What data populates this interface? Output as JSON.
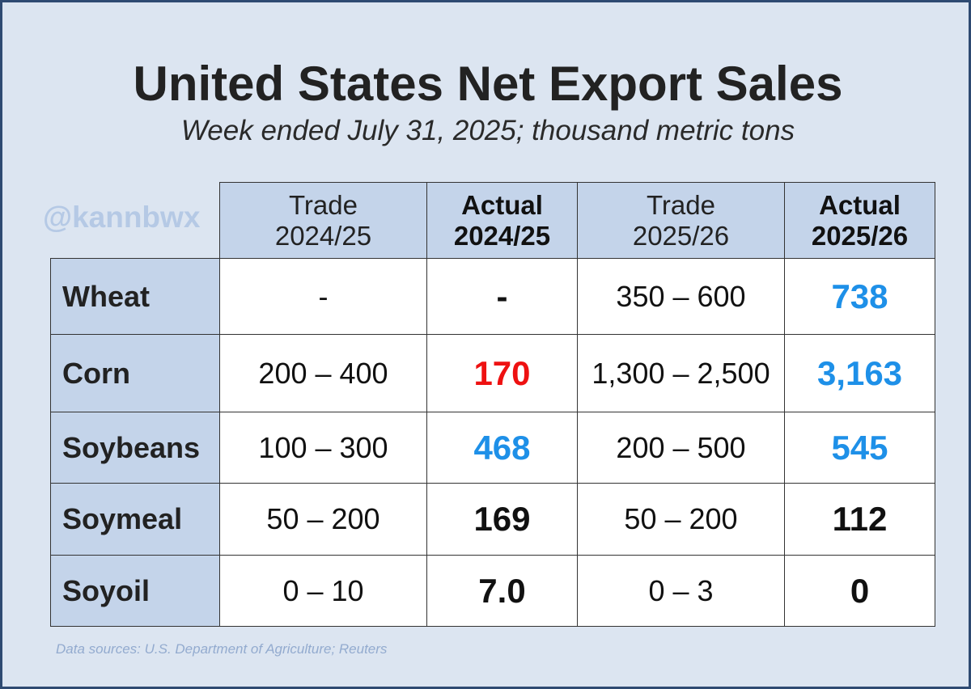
{
  "title": "United States Net Export Sales",
  "subtitle": "Week ended July 31, 2025; thousand metric tons",
  "watermark": "@kannbwx",
  "source": "Data sources: U.S. Department of Agriculture; Reuters",
  "colors": {
    "above_range": "#1e90e8",
    "below_range": "#ee1111",
    "within_range": "#111111",
    "header_bg": "#c4d4ea",
    "background": "#dce5f1"
  },
  "chart_data": {
    "type": "table",
    "title": "United States Net Export Sales",
    "subtitle": "Week ended July 31, 2025; thousand metric tons",
    "columns": [
      {
        "line1": "Trade",
        "line2": "2024/25",
        "bold": false
      },
      {
        "line1": "Actual",
        "line2": "2024/25",
        "bold": true
      },
      {
        "line1": "Trade",
        "line2": "2025/26",
        "bold": false
      },
      {
        "line1": "Actual",
        "line2": "2025/26",
        "bold": true
      }
    ],
    "rows": [
      {
        "label": "Wheat",
        "trade_2024_25": "-",
        "actual_2024_25": "-",
        "actual_2024_25_color": "black",
        "trade_2025_26": "350 – 600",
        "actual_2025_26": "738",
        "actual_2025_26_color": "blue"
      },
      {
        "label": "Corn",
        "trade_2024_25": "200 – 400",
        "actual_2024_25": "170",
        "actual_2024_25_color": "red",
        "trade_2025_26": "1,300 – 2,500",
        "actual_2025_26": "3,163",
        "actual_2025_26_color": "blue"
      },
      {
        "label": "Soybeans",
        "trade_2024_25": "100 – 300",
        "actual_2024_25": "468",
        "actual_2024_25_color": "blue",
        "trade_2025_26": "200 – 500",
        "actual_2025_26": "545",
        "actual_2025_26_color": "blue"
      },
      {
        "label": "Soymeal",
        "trade_2024_25": "50 – 200",
        "actual_2024_25": "169",
        "actual_2024_25_color": "black",
        "trade_2025_26": "50 – 200",
        "actual_2025_26": "112",
        "actual_2025_26_color": "black"
      },
      {
        "label": "Soyoil",
        "trade_2024_25": "0 – 10",
        "actual_2024_25": "7.0",
        "actual_2024_25_color": "black",
        "trade_2025_26": "0 – 3",
        "actual_2025_26": "0",
        "actual_2025_26_color": "black"
      }
    ]
  }
}
